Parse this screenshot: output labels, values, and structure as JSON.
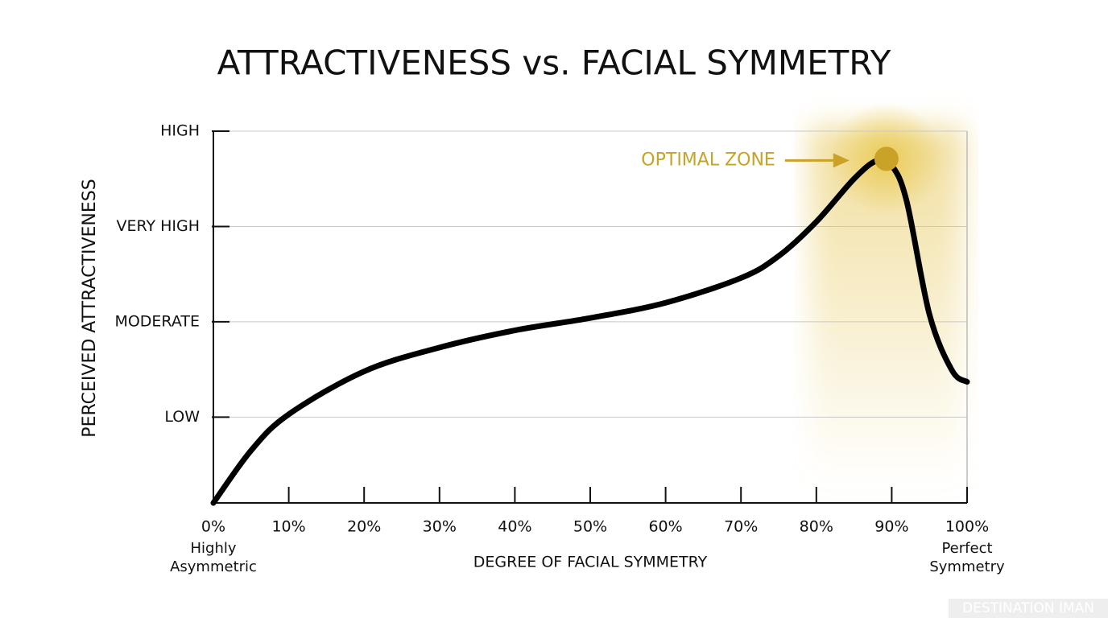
{
  "chart_data": {
    "type": "line",
    "title": "ATTRACTIVENESS vs. FACIAL SYMMETRY",
    "x_label": "DEGREE OF FACIAL SYMMETRY",
    "y_label": "PERCEIVED ATTRACTIVENESS",
    "x": [
      0,
      5,
      10,
      20,
      30,
      40,
      50,
      60,
      70,
      75,
      80,
      85,
      88,
      90,
      92,
      95,
      98,
      100
    ],
    "series": [
      {
        "name": "Attractiveness",
        "color": "#000000",
        "values": [
          0.1,
          0.65,
          1.03,
          1.48,
          1.73,
          1.91,
          2.04,
          2.2,
          2.46,
          2.69,
          3.05,
          3.5,
          3.69,
          3.64,
          3.26,
          2.08,
          1.49,
          1.37
        ]
      }
    ],
    "xlim": [
      0,
      100
    ],
    "xticks": [
      {
        "value": 0,
        "label": "0%"
      },
      {
        "value": 10,
        "label": "10%"
      },
      {
        "value": 20,
        "label": "20%"
      },
      {
        "value": 30,
        "label": "30%"
      },
      {
        "value": 40,
        "label": "40%"
      },
      {
        "value": 50,
        "label": "50%"
      },
      {
        "value": 60,
        "label": "60%"
      },
      {
        "value": 70,
        "label": "70%"
      },
      {
        "value": 80,
        "label": "80%"
      },
      {
        "value": 90,
        "label": "90%"
      },
      {
        "value": 100,
        "label": "100%"
      }
    ],
    "ylim": [
      0.1,
      4
    ],
    "yticks": [
      {
        "value": 1,
        "label": "LOW"
      },
      {
        "value": 2,
        "label": "MODERATE"
      },
      {
        "value": 3,
        "label": "VERY HIGH"
      },
      {
        "value": 4,
        "label": "HIGH"
      }
    ],
    "grid": true,
    "x_start_label": [
      "Highly",
      "Asymmetric"
    ],
    "x_end_label": [
      "Perfect",
      "Symmetry"
    ],
    "highlight": {
      "label": "OPTIMAL ZONE",
      "x": 89.3,
      "y": 3.71,
      "color": "#c9a227"
    },
    "watermark": "DESTINATION IMAN"
  }
}
